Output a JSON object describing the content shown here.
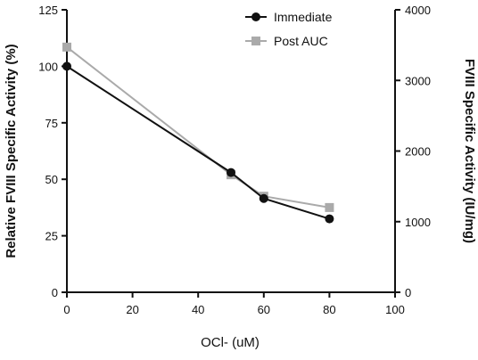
{
  "chart_data": {
    "type": "line",
    "title": "",
    "xlabel": "OCl- (uM)",
    "ylabel": "Relative FVIII Specific Activity (%)",
    "y2label": "FVIII Specific Activity (IU/mg)",
    "xlim": [
      0,
      100
    ],
    "ylim": [
      0,
      125
    ],
    "y2lim": [
      0,
      4000
    ],
    "x_ticks": [
      0,
      20,
      40,
      60,
      80,
      100
    ],
    "y_ticks": [
      0,
      25,
      50,
      75,
      100,
      125
    ],
    "y2_ticks": [
      0,
      1000,
      2000,
      3000,
      4000
    ],
    "grid": false,
    "legend_position": "top-right",
    "series": [
      {
        "name": "Immediate",
        "color": "#111111",
        "marker": "circle",
        "x": [
          0,
          50,
          60,
          80
        ],
        "y": [
          100,
          53,
          41.5,
          32.5
        ]
      },
      {
        "name": "Post AUC",
        "color": "#aaaaaa",
        "marker": "square",
        "x": [
          0,
          50,
          60,
          80
        ],
        "y": [
          108.5,
          52,
          42.5,
          37.5
        ]
      }
    ]
  }
}
